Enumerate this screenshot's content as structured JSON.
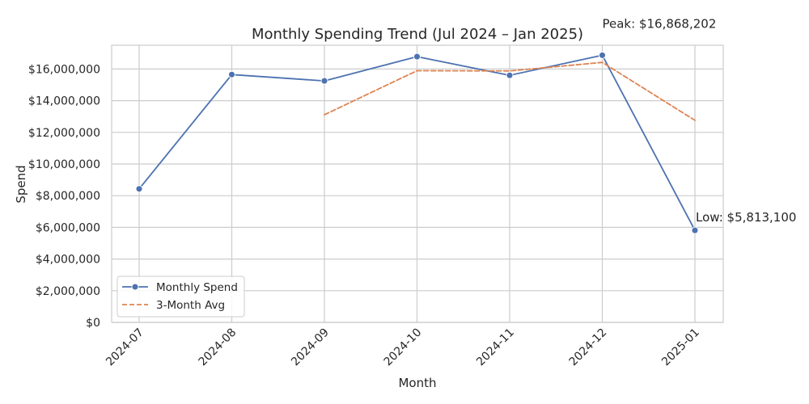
{
  "chart_data": {
    "type": "line",
    "title": "Monthly Spending Trend (Jul 2024 – Jan 2025)",
    "xlabel": "Month",
    "ylabel": "Spend",
    "categories": [
      "2024-07",
      "2024-08",
      "2024-09",
      "2024-10",
      "2024-11",
      "2024-12",
      "2025-01"
    ],
    "ylim": [
      0,
      17500000
    ],
    "yticks": [
      0,
      2000000,
      4000000,
      6000000,
      8000000,
      10000000,
      12000000,
      14000000,
      16000000
    ],
    "ytick_labels": [
      "$0",
      "$2,000,000",
      "$4,000,000",
      "$6,000,000",
      "$8,000,000",
      "$10,000,000",
      "$12,000,000",
      "$14,000,000",
      "$16,000,000"
    ],
    "grid": true,
    "legend_position": "lower-left",
    "series": [
      {
        "name": "Monthly Spend",
        "values": [
          8430000,
          15650000,
          15250000,
          16780000,
          15600000,
          16868202,
          5813100
        ],
        "color": "#4c72b0",
        "style": "solid",
        "marker": "circle"
      },
      {
        "name": "3-Month Avg",
        "values": [
          null,
          null,
          13110000,
          15893333,
          15876667,
          16416067,
          12760434
        ],
        "color": "#dd8452",
        "style": "dashed",
        "marker": "none"
      }
    ],
    "annotations": [
      {
        "text": "Peak: $16,868,202",
        "category": "2024-12",
        "value": 16868202
      },
      {
        "text": "Low: $5,813,100",
        "category": "2025-01",
        "value": 5813100
      }
    ]
  }
}
